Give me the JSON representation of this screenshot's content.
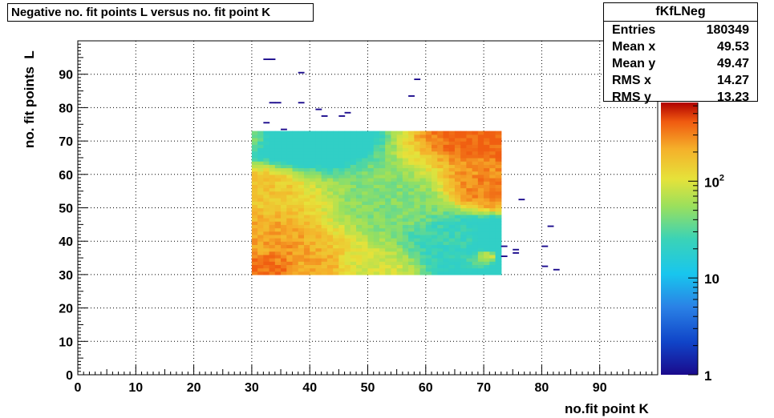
{
  "title": "Negative no. fit points L versus no. fit point K",
  "stats": {
    "name": "fKfLNeg",
    "rows": [
      {
        "label": "Entries",
        "value": "180349"
      },
      {
        "label": "Mean x",
        "value": "49.53"
      },
      {
        "label": "Mean y",
        "value": "49.47"
      },
      {
        "label": "RMS x",
        "value": "14.27"
      },
      {
        "label": "RMS y",
        "value": "13.23"
      }
    ]
  },
  "chart_data": {
    "type": "heatmap",
    "title": "Negative no. fit points L versus no. fit point K",
    "xlabel": "no.fit point K",
    "ylabel": "no. fit points  L",
    "xlim": [
      0,
      100
    ],
    "ylim": [
      0,
      100
    ],
    "x_ticks": [
      "0",
      "10",
      "20",
      "30",
      "40",
      "50",
      "60",
      "70",
      "80",
      "90"
    ],
    "y_ticks": [
      "0",
      "10",
      "20",
      "30",
      "40",
      "50",
      "60",
      "70",
      "80",
      "90"
    ],
    "grid": true,
    "color_scale": "log",
    "z_ticks": [
      {
        "label": "1",
        "value": 1
      },
      {
        "label": "10",
        "value": 10
      },
      {
        "label": "10",
        "sup": "2",
        "value": 100
      }
    ],
    "z_range": [
      1,
      650
    ],
    "dense_region": {
      "x_range": [
        30,
        73
      ],
      "y_range": [
        30,
        73
      ],
      "typical_count_range": [
        20,
        400
      ]
    },
    "points": [
      {
        "x": 30,
        "y": 30,
        "count": 400
      },
      {
        "x": 31,
        "y": 30,
        "count": 350
      },
      {
        "x": 30,
        "y": 40,
        "count": 230
      },
      {
        "x": 30,
        "y": 55,
        "count": 160
      },
      {
        "x": 30,
        "y": 72,
        "count": 40
      },
      {
        "x": 40,
        "y": 30,
        "count": 220
      },
      {
        "x": 50,
        "y": 30,
        "count": 90
      },
      {
        "x": 55,
        "y": 50,
        "count": 45
      },
      {
        "x": 65,
        "y": 40,
        "count": 25
      },
      {
        "x": 70,
        "y": 72,
        "count": 400
      },
      {
        "x": 71,
        "y": 55,
        "count": 300
      },
      {
        "x": 71,
        "y": 35,
        "count": 80
      },
      {
        "x": 32,
        "y": 94,
        "count": 1
      },
      {
        "x": 33,
        "y": 94,
        "count": 1
      },
      {
        "x": 38,
        "y": 90,
        "count": 1
      },
      {
        "x": 58,
        "y": 88,
        "count": 1
      },
      {
        "x": 57,
        "y": 83,
        "count": 1
      },
      {
        "x": 33,
        "y": 81,
        "count": 1
      },
      {
        "x": 34,
        "y": 81,
        "count": 1
      },
      {
        "x": 38,
        "y": 81,
        "count": 1
      },
      {
        "x": 41,
        "y": 79,
        "count": 1
      },
      {
        "x": 46,
        "y": 78,
        "count": 1
      },
      {
        "x": 42,
        "y": 77,
        "count": 1
      },
      {
        "x": 45,
        "y": 77,
        "count": 1
      },
      {
        "x": 32,
        "y": 75,
        "count": 1
      },
      {
        "x": 35,
        "y": 73,
        "count": 1
      },
      {
        "x": 76,
        "y": 52,
        "count": 1
      },
      {
        "x": 81,
        "y": 44,
        "count": 1
      },
      {
        "x": 73,
        "y": 38,
        "count": 1
      },
      {
        "x": 80,
        "y": 38,
        "count": 1
      },
      {
        "x": 75,
        "y": 37,
        "count": 1
      },
      {
        "x": 75,
        "y": 36,
        "count": 1
      },
      {
        "x": 73,
        "y": 35,
        "count": 1
      },
      {
        "x": 80,
        "y": 32,
        "count": 1
      },
      {
        "x": 82,
        "y": 31,
        "count": 1
      }
    ]
  }
}
